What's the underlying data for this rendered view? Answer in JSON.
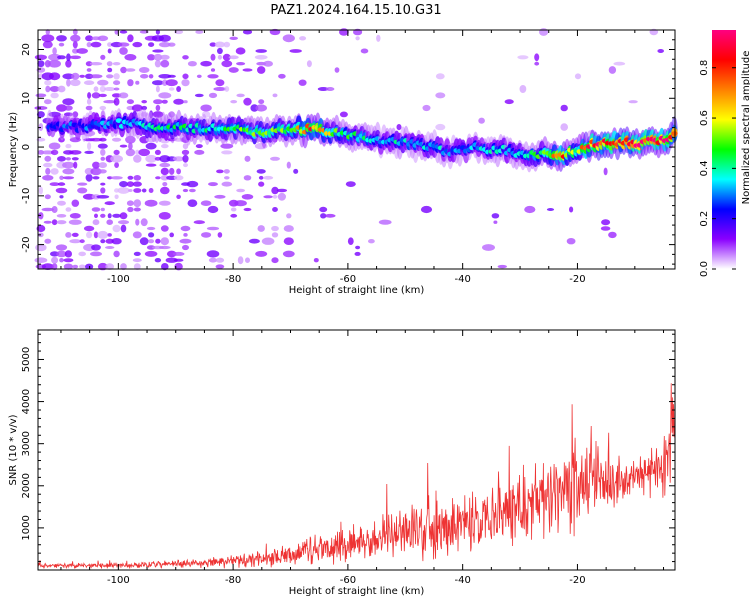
{
  "title": "PAZ1.2024.164.15.10.G31",
  "chart_data": [
    {
      "type": "heatmap",
      "xlabel": "Height of straight line (km)",
      "ylabel": "Frequency (Hz)",
      "xlim": [
        -114,
        -3
      ],
      "ylim": [
        -25,
        24
      ],
      "x_ticks": [
        -100,
        -80,
        -60,
        -40,
        -20
      ],
      "y_ticks": [
        -20,
        -10,
        0,
        10,
        20
      ],
      "colorbar": {
        "label": "Normalized spectral amplitude",
        "range": [
          0,
          0.95
        ],
        "ticks": [
          0.0,
          0.2,
          0.4,
          0.6,
          0.8
        ],
        "colormap": [
          "#ffffff",
          "#8a00ff",
          "#0000ff",
          "#00ffff",
          "#00ff00",
          "#ffff00",
          "#ff8000",
          "#ff0000",
          "#ff0080"
        ]
      },
      "ridge": {
        "x": [
          -110,
          -100,
          -95,
          -90,
          -85,
          -80,
          -75,
          -70,
          -66,
          -62,
          -58,
          -55,
          -50,
          -45,
          -42,
          -38,
          -35,
          -30,
          -28,
          -25,
          -23,
          -20,
          -18,
          -15,
          -12,
          -8,
          -5,
          -3
        ],
        "y": [
          4.0,
          4.8,
          4.5,
          4.0,
          3.8,
          3.5,
          3.0,
          3.5,
          3.8,
          3.0,
          2.0,
          1.5,
          1.0,
          0.0,
          -1.0,
          0.0,
          -0.5,
          -1.0,
          -1.5,
          -1.5,
          -1.7,
          -1.0,
          0.5,
          0.5,
          0.8,
          0.8,
          1.5,
          2.5
        ],
        "amplitude": [
          0.25,
          0.3,
          0.35,
          0.4,
          0.4,
          0.45,
          0.5,
          0.5,
          0.75,
          0.45,
          0.4,
          0.35,
          0.35,
          0.35,
          0.3,
          0.3,
          0.35,
          0.35,
          0.4,
          0.5,
          0.8,
          0.5,
          0.85,
          0.9,
          0.9,
          0.9,
          0.9,
          0.85
        ]
      }
    },
    {
      "type": "line",
      "xlabel": "Height of straight line (km)",
      "ylabel": "SNR (10 * v/v)",
      "xlim": [
        -114,
        -3
      ],
      "ylim": [
        0,
        5700
      ],
      "x_ticks": [
        -100,
        -80,
        -60,
        -40,
        -20
      ],
      "y_ticks": [
        1000,
        2000,
        3000,
        4000,
        5000
      ],
      "color": "#ee3333",
      "envelope": {
        "x": [
          -114,
          -100,
          -90,
          -85,
          -80,
          -75,
          -72,
          -70,
          -67,
          -62,
          -58,
          -55,
          -50,
          -45,
          -40,
          -35,
          -30,
          -28,
          -25,
          -22,
          -20,
          -18,
          -15,
          -12,
          -10,
          -8,
          -6,
          -5,
          -4,
          -3
        ],
        "base": [
          100,
          110,
          140,
          170,
          200,
          260,
          300,
          330,
          480,
          560,
          640,
          720,
          790,
          880,
          1050,
          1250,
          1450,
          1570,
          1700,
          1850,
          2000,
          2050,
          2100,
          2150,
          2200,
          2250,
          2350,
          2500,
          3000,
          4000
        ],
        "amp": [
          60,
          70,
          90,
          110,
          140,
          180,
          220,
          250,
          320,
          380,
          450,
          520,
          600,
          680,
          760,
          820,
          900,
          950,
          1000,
          1100,
          1200,
          1000,
          650,
          500,
          450,
          520,
          700,
          900,
          1300,
          1500
        ]
      }
    }
  ]
}
